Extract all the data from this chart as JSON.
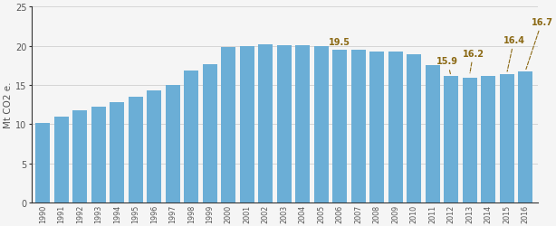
{
  "years": [
    1990,
    1991,
    1992,
    1993,
    1994,
    1995,
    1996,
    1997,
    1998,
    1999,
    2000,
    2001,
    2002,
    2003,
    2004,
    2005,
    2006,
    2007,
    2008,
    2009,
    2010,
    2011,
    2012,
    2013,
    2014,
    2015,
    2016
  ],
  "values": [
    10.2,
    10.9,
    11.8,
    12.2,
    12.8,
    13.5,
    14.3,
    15.0,
    16.8,
    17.7,
    19.8,
    19.9,
    20.2,
    20.1,
    20.1,
    19.9,
    19.5,
    19.5,
    19.3,
    19.3,
    18.9,
    17.5,
    16.1,
    15.9,
    16.2,
    16.4,
    16.7
  ],
  "bar_color": "#6baed6",
  "background_color": "#f5f5f5",
  "ylabel": "Mt CO2 e.",
  "ylim": [
    0,
    25
  ],
  "yticks": [
    0,
    5,
    10,
    15,
    20,
    25
  ],
  "grid_color": "#d0d0d0",
  "text_color": "#555555",
  "spine_color": "#333333",
  "annot_color": "#8B6914",
  "annot_line_color": "#8B6914"
}
